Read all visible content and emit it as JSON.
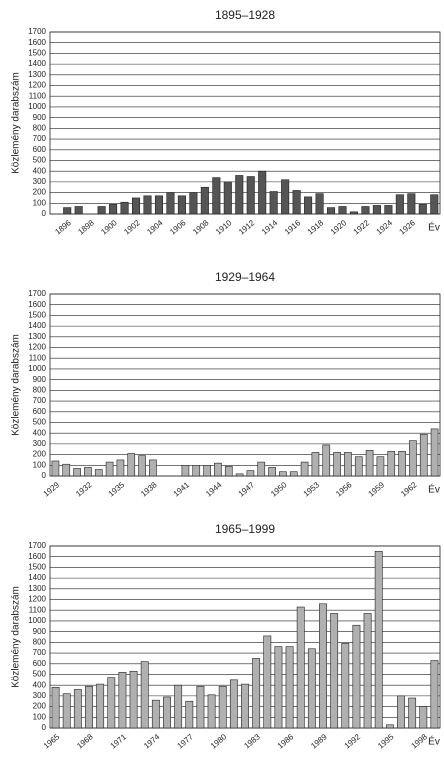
{
  "chart_data": [
    {
      "type": "bar",
      "title": "1895–1928",
      "y_label": "Közlemény darabszám",
      "x_label": "Év",
      "categories": [
        null,
        "1896",
        null,
        "1898",
        null,
        "1900",
        null,
        "1902",
        null,
        "1904",
        null,
        "1906",
        null,
        "1908",
        null,
        "1910",
        null,
        "1912",
        null,
        "1914",
        null,
        "1916",
        null,
        "1918",
        null,
        "1920",
        null,
        "1922",
        null,
        "1924",
        null,
        "1926",
        null,
        null
      ],
      "values": [
        0,
        60,
        70,
        0,
        70,
        90,
        110,
        150,
        170,
        170,
        200,
        170,
        200,
        250,
        340,
        300,
        360,
        350,
        400,
        210,
        320,
        220,
        160,
        190,
        60,
        70,
        20,
        70,
        80,
        80,
        180,
        190,
        90,
        180
      ],
      "color": "#555555",
      "ylim": [
        0,
        1700
      ],
      "yticks": [
        0,
        100,
        200,
        300,
        400,
        500,
        600,
        700,
        800,
        900,
        1000,
        1100,
        1200,
        1300,
        1400,
        1500,
        1600,
        1700
      ],
      "grid": true
    },
    {
      "type": "bar",
      "title": "1929–1964",
      "y_label": "Közlemény darabszám",
      "x_label": "Év",
      "categories": [
        "1929",
        null,
        null,
        "1932",
        null,
        null,
        "1935",
        null,
        null,
        "1938",
        null,
        null,
        "1941",
        null,
        null,
        "1944",
        null,
        null,
        "1947",
        null,
        null,
        "1950",
        null,
        null,
        "1953",
        null,
        null,
        "1956",
        null,
        null,
        "1959",
        null,
        null,
        "1962",
        null,
        null
      ],
      "values": [
        140,
        110,
        70,
        80,
        60,
        130,
        150,
        210,
        190,
        150,
        0,
        0,
        100,
        100,
        100,
        120,
        90,
        20,
        50,
        130,
        80,
        40,
        40,
        130,
        220,
        290,
        220,
        220,
        180,
        240,
        180,
        230,
        230,
        330,
        390,
        440
      ],
      "color": "#b0b0b0",
      "ylim": [
        0,
        1700
      ],
      "yticks": [
        0,
        100,
        200,
        300,
        400,
        500,
        600,
        700,
        800,
        900,
        1000,
        1100,
        1200,
        1300,
        1400,
        1500,
        1600,
        1700
      ],
      "grid": true
    },
    {
      "type": "bar",
      "title": "1965–1999",
      "y_label": "Közlemény darabszám",
      "x_label": "Év",
      "categories": [
        "1965",
        null,
        null,
        "1968",
        null,
        null,
        "1971",
        null,
        null,
        "1974",
        null,
        null,
        "1977",
        null,
        null,
        "1980",
        null,
        null,
        "1983",
        null,
        null,
        "1986",
        null,
        null,
        "1989",
        null,
        null,
        "1992",
        null,
        null,
        "1995",
        null,
        null,
        "1998",
        null
      ],
      "values": [
        380,
        320,
        360,
        390,
        410,
        470,
        520,
        530,
        620,
        260,
        290,
        400,
        250,
        390,
        310,
        390,
        450,
        410,
        650,
        860,
        760,
        760,
        1130,
        740,
        1160,
        1070,
        790,
        960,
        1070,
        1650,
        30,
        300,
        280,
        200,
        630
      ],
      "color": "#b0b0b0",
      "ylim": [
        0,
        1700
      ],
      "yticks": [
        0,
        100,
        200,
        300,
        400,
        500,
        600,
        700,
        800,
        900,
        1000,
        1100,
        1200,
        1300,
        1400,
        1500,
        1600,
        1700
      ],
      "grid": true
    }
  ]
}
